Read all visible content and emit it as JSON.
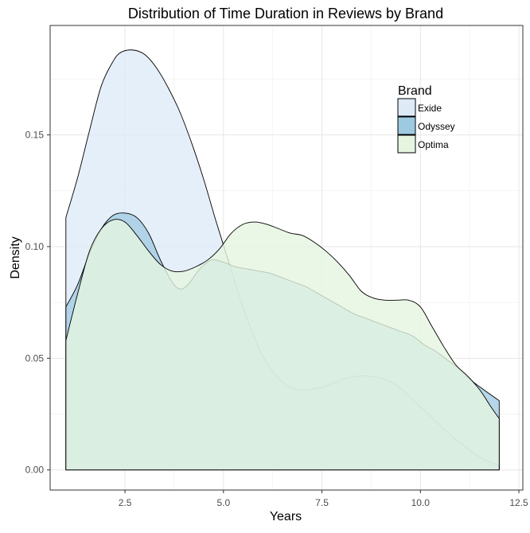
{
  "chart_data": {
    "type": "area",
    "title": "Distribution of Time Duration in Reviews by Brand",
    "xlabel": "Years",
    "ylabel": "Density",
    "xlim": [
      0.6,
      12.6
    ],
    "ylim": [
      -0.009,
      0.199
    ],
    "x_ticks": [
      2.5,
      5.0,
      7.5,
      10.0,
      12.5
    ],
    "x_tick_labels": [
      "2.5",
      "5.0",
      "7.5",
      "10.0",
      "12.5"
    ],
    "y_ticks": [
      0.0,
      0.05,
      0.1,
      0.15
    ],
    "y_tick_labels": [
      "0.00",
      "0.05",
      "0.10",
      "0.15"
    ],
    "grid": true,
    "legend": {
      "title": "Brand",
      "position": "top-right",
      "items": [
        "Exide",
        "Odyssey",
        "Optima"
      ]
    },
    "colors": {
      "Exide": "#deebf7",
      "Odyssey": "#9ecae1",
      "Optima": "#e5f5e0",
      "stroke": "#000000",
      "grid": "#e6e6e6",
      "border": "#333333"
    },
    "fill_opacity": {
      "Exide": 0.8,
      "Odyssey": 0.75,
      "Optima": 0.8
    },
    "series": [
      {
        "name": "Exide",
        "x": [
          1.0,
          1.3,
          1.6,
          1.9,
          2.2,
          2.4,
          2.7,
          3.0,
          3.3,
          3.6,
          3.9,
          4.2,
          4.5,
          4.8,
          5.1,
          5.4,
          5.7,
          6.0,
          6.3,
          6.6,
          6.9,
          7.2,
          7.5,
          7.8,
          8.1,
          8.4,
          8.7,
          9.0,
          9.3,
          9.6,
          9.9,
          10.2,
          10.5,
          10.8,
          11.1,
          11.4,
          11.7,
          12.0
        ],
        "values": [
          0.113,
          0.131,
          0.152,
          0.172,
          0.183,
          0.187,
          0.188,
          0.186,
          0.18,
          0.171,
          0.16,
          0.146,
          0.13,
          0.112,
          0.095,
          0.078,
          0.063,
          0.051,
          0.043,
          0.038,
          0.036,
          0.036,
          0.037,
          0.039,
          0.041,
          0.042,
          0.042,
          0.041,
          0.039,
          0.035,
          0.03,
          0.025,
          0.02,
          0.015,
          0.011,
          0.007,
          0.004,
          0.002
        ]
      },
      {
        "name": "Odyssey",
        "x": [
          1.0,
          1.3,
          1.6,
          1.9,
          2.2,
          2.5,
          2.8,
          3.1,
          3.4,
          3.7,
          3.9,
          4.1,
          4.4,
          4.7,
          5.0,
          5.3,
          5.6,
          5.9,
          6.2,
          6.5,
          6.8,
          7.1,
          7.4,
          7.7,
          8.0,
          8.3,
          8.6,
          8.9,
          9.2,
          9.5,
          9.8,
          10.1,
          10.4,
          10.7,
          11.0,
          11.3,
          11.6,
          12.0
        ],
        "values": [
          0.073,
          0.083,
          0.097,
          0.108,
          0.114,
          0.115,
          0.113,
          0.106,
          0.094,
          0.084,
          0.081,
          0.083,
          0.09,
          0.094,
          0.093,
          0.091,
          0.09,
          0.089,
          0.088,
          0.086,
          0.084,
          0.082,
          0.079,
          0.076,
          0.073,
          0.07,
          0.068,
          0.066,
          0.064,
          0.062,
          0.06,
          0.056,
          0.053,
          0.049,
          0.045,
          0.04,
          0.036,
          0.031
        ]
      },
      {
        "name": "Optima",
        "x": [
          1.0,
          1.3,
          1.6,
          1.9,
          2.2,
          2.5,
          2.8,
          3.1,
          3.4,
          3.7,
          4.0,
          4.3,
          4.6,
          4.9,
          5.2,
          5.5,
          5.8,
          6.1,
          6.4,
          6.7,
          7.0,
          7.3,
          7.6,
          7.9,
          8.2,
          8.5,
          8.8,
          9.1,
          9.4,
          9.7,
          10.0,
          10.3,
          10.6,
          10.9,
          11.2,
          11.5,
          11.8,
          12.0
        ],
        "values": [
          0.058,
          0.079,
          0.098,
          0.108,
          0.112,
          0.111,
          0.105,
          0.098,
          0.092,
          0.089,
          0.089,
          0.091,
          0.094,
          0.099,
          0.106,
          0.11,
          0.111,
          0.11,
          0.108,
          0.106,
          0.105,
          0.102,
          0.098,
          0.093,
          0.087,
          0.08,
          0.077,
          0.076,
          0.076,
          0.076,
          0.073,
          0.064,
          0.055,
          0.047,
          0.042,
          0.036,
          0.028,
          0.023
        ]
      }
    ]
  }
}
